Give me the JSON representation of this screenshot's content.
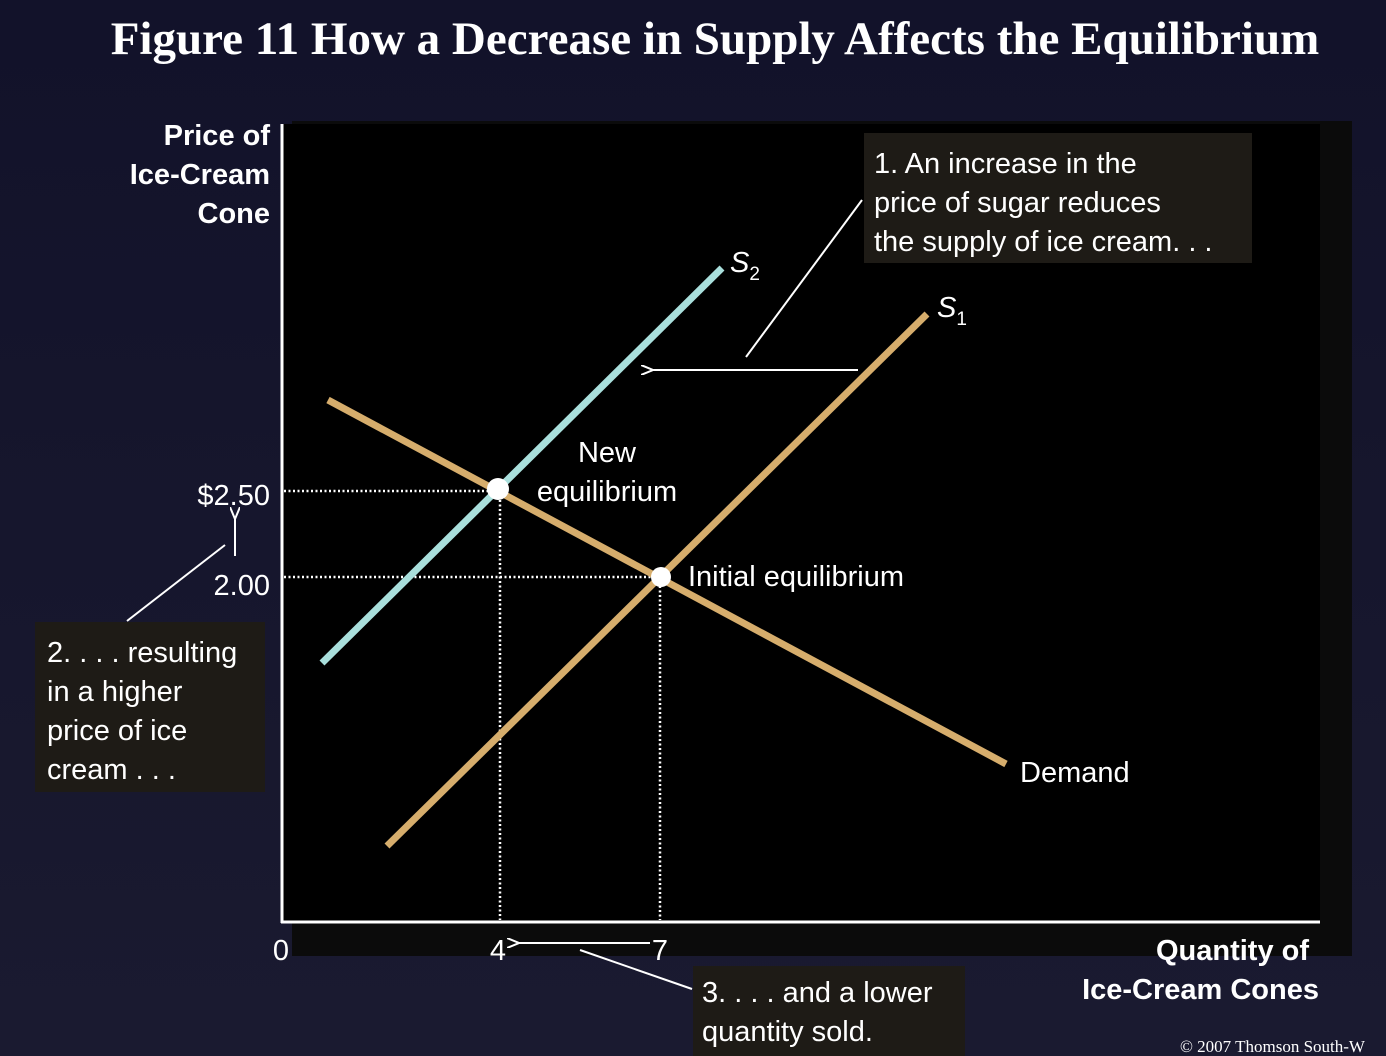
{
  "title": "Figure 11 How a Decrease in Supply Affects the Equilibrium",
  "axes": {
    "y_label": [
      "Price of",
      "Ice-Cream",
      "Cone"
    ],
    "x_label": [
      "Quantity of",
      "Ice-Cream Cones"
    ],
    "origin": "0",
    "y_ticks": [
      "$2.50",
      "2.00"
    ],
    "x_ticks": [
      "4",
      "7"
    ]
  },
  "curves": {
    "supply_2": {
      "letter": "S",
      "subscript": "2"
    },
    "supply_1": {
      "letter": "S",
      "subscript": "1"
    },
    "demand": "Demand"
  },
  "points": {
    "new": [
      "New",
      "equilibrium"
    ],
    "initial": "Initial equilibrium"
  },
  "annotations": {
    "step_1": [
      "1. An increase in the",
      "price of sugar reduces",
      "the supply of ice cream. . ."
    ],
    "step_2": [
      "2. . . . resulting",
      "in a higher",
      "price of ice",
      "cream . . ."
    ],
    "step_3": [
      "3. . . . and a lower",
      "quantity sold."
    ]
  },
  "copyright": "© 2007 Thomson South-W"
}
